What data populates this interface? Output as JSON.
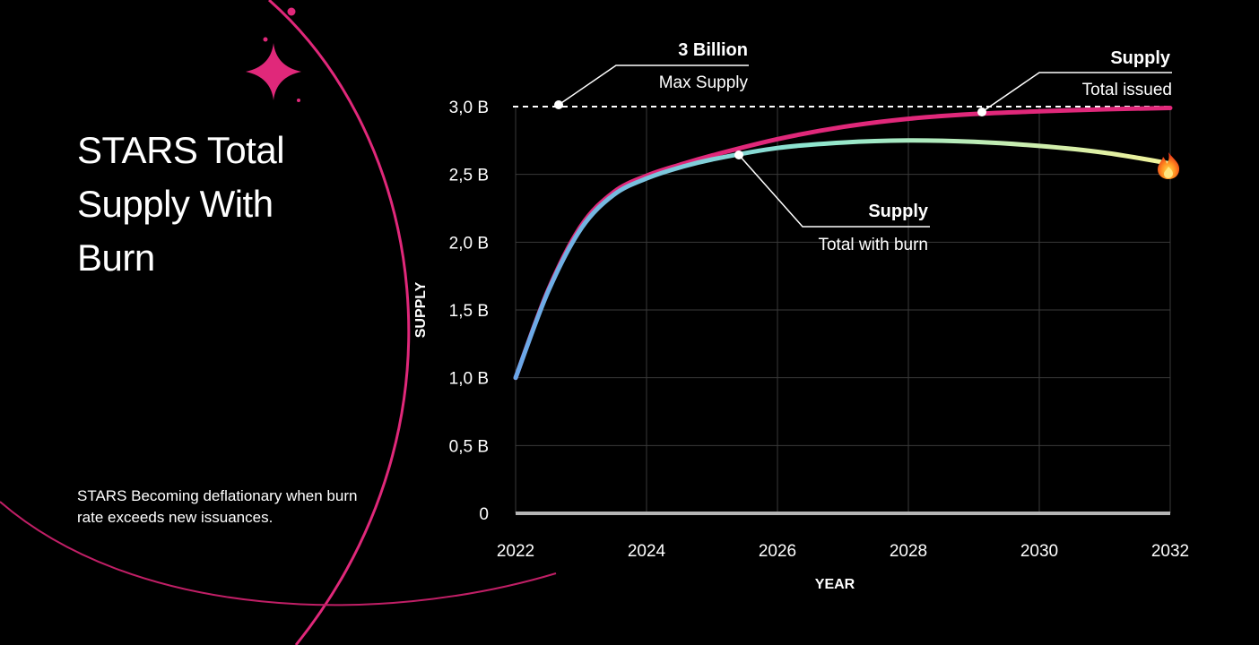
{
  "page": {
    "title": "STARS Total Supply With Burn",
    "description": "STARS Becoming deflationary when burn rate exceeds new issuances."
  },
  "annotations": {
    "max_supply": {
      "head": "3 Billion",
      "sub": "Max Supply"
    },
    "total_issued": {
      "head": "Supply",
      "sub": "Total issued"
    },
    "total_with_burn": {
      "head": "Supply",
      "sub": "Total with burn"
    }
  },
  "icons": {
    "sparkle": "sparkle-icon",
    "fire": "fire-icon"
  },
  "colors": {
    "background": "#000000",
    "accent": "#e0287a",
    "issued": "#e0287a",
    "burn_start": "#6aa6e8",
    "burn_mid": "#8ee6cf",
    "burn_end": "#f2f29a",
    "grid": "#3a3a3a"
  },
  "chart_data": {
    "type": "line",
    "xlabel": "YEAR",
    "ylabel": "SUPPLY",
    "xlim": [
      2022,
      2032
    ],
    "ylim": [
      0,
      3
    ],
    "x_ticks": [
      2022,
      2024,
      2026,
      2028,
      2030,
      2032
    ],
    "x_tick_labels": [
      "2022",
      "2024",
      "2026",
      "2028",
      "2030",
      "2032"
    ],
    "y_ticks": [
      0,
      0.5,
      1,
      1.5,
      2,
      2.5,
      3
    ],
    "y_tick_labels": [
      "0",
      "0,5 B",
      "1,0 B",
      "1,5 B",
      "2,0 B",
      "2,5 B",
      "3,0 B"
    ],
    "grid": true,
    "reference_line": {
      "y": 3.0,
      "style": "dashed"
    },
    "series": [
      {
        "x": [
          2022,
          2022.5,
          2023,
          2023.5,
          2024,
          2024.5,
          2025,
          2026,
          2027,
          2028,
          2029,
          2030,
          2031,
          2032
        ],
        "values": [
          1.0,
          1.65,
          2.12,
          2.37,
          2.49,
          2.57,
          2.64,
          2.76,
          2.85,
          2.91,
          2.945,
          2.965,
          2.98,
          2.99
        ]
      },
      {
        "x": [
          2022,
          2022.5,
          2023,
          2023.5,
          2024,
          2024.5,
          2025,
          2026,
          2027,
          2028,
          2029,
          2030,
          2031,
          2032
        ],
        "values": [
          1.0,
          1.64,
          2.1,
          2.35,
          2.47,
          2.55,
          2.61,
          2.695,
          2.735,
          2.75,
          2.74,
          2.71,
          2.66,
          2.58
        ]
      }
    ]
  }
}
